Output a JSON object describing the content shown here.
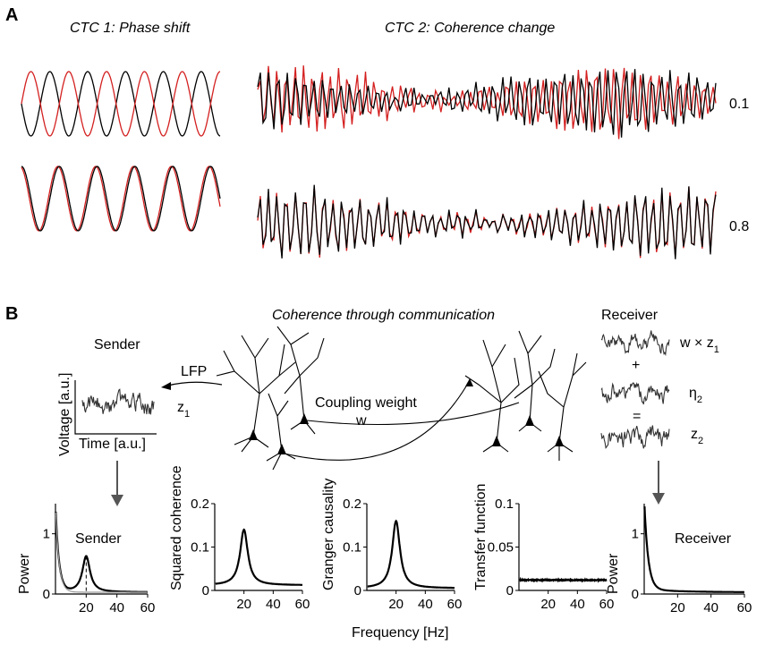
{
  "panel_a": {
    "letter": "A",
    "ctc1_title": "CTC 1: Phase shift",
    "ctc2_title": "CTC 2: Coherence change",
    "coherence_values": [
      "0.1",
      "0.8"
    ],
    "colors": {
      "trace_primary": "#000000",
      "trace_secondary": "#d42020"
    }
  },
  "panel_b": {
    "letter": "B",
    "title": "Coherence through communication",
    "sender_label": "Sender",
    "receiver_label": "Receiver",
    "lfp_label": "LFP",
    "z1_label": "z",
    "z1_sub": "1",
    "coupling_label": "Coupling weight",
    "coupling_symbol": "w",
    "voltage_axis": "Voltage [a.u.]",
    "time_axis": "Time [a.u.]",
    "eq_term1": "w × z",
    "eq_term1_sub": "1",
    "eq_plus": "+",
    "eq_term2": "η",
    "eq_term2_sub": "2",
    "eq_equals": "=",
    "eq_result": "z",
    "eq_result_sub": "2",
    "frequency_axis": "Frequency [Hz]"
  },
  "chart_data": [
    {
      "type": "line",
      "name": "sender-power",
      "ylabel": "Power",
      "inner_label": "Sender",
      "xlim": [
        0,
        60
      ],
      "ylim": [
        0,
        1.5
      ],
      "xticks": [
        "20",
        "40",
        "60"
      ],
      "yticks": [
        "0",
        "1"
      ],
      "peak_hz": 20
    },
    {
      "type": "line",
      "name": "squared-coherence",
      "ylabel": "Squared coherence",
      "xlim": [
        0,
        60
      ],
      "ylim": [
        0,
        0.2
      ],
      "xticks": [
        "20",
        "40",
        "60"
      ],
      "yticks": [
        "0",
        "0.1",
        "0.2"
      ],
      "peak_hz": 20,
      "peak_value": 0.14,
      "baseline": 0.012
    },
    {
      "type": "line",
      "name": "granger-causality",
      "ylabel": "Granger causality",
      "xlim": [
        0,
        60
      ],
      "ylim": [
        0,
        0.2
      ],
      "xticks": [
        "20",
        "40",
        "60"
      ],
      "yticks": [
        "0",
        "0.1",
        "0.2"
      ],
      "peak_hz": 20,
      "peak_value": 0.16,
      "baseline": 0.005
    },
    {
      "type": "line",
      "name": "transfer-function",
      "ylabel": "Transfer function",
      "xlim": [
        0,
        60
      ],
      "ylim": [
        0,
        0.1
      ],
      "xticks": [
        "20",
        "40",
        "60"
      ],
      "yticks": [
        "0",
        "0.05",
        "0.1"
      ],
      "flat_value": 0.012
    },
    {
      "type": "line",
      "name": "receiver-power",
      "ylabel": "Power",
      "inner_label": "Receiver",
      "xlim": [
        0,
        60
      ],
      "ylim": [
        0,
        1.5
      ],
      "xticks": [
        "20",
        "40",
        "60"
      ],
      "yticks": [
        "0",
        "1"
      ]
    }
  ]
}
